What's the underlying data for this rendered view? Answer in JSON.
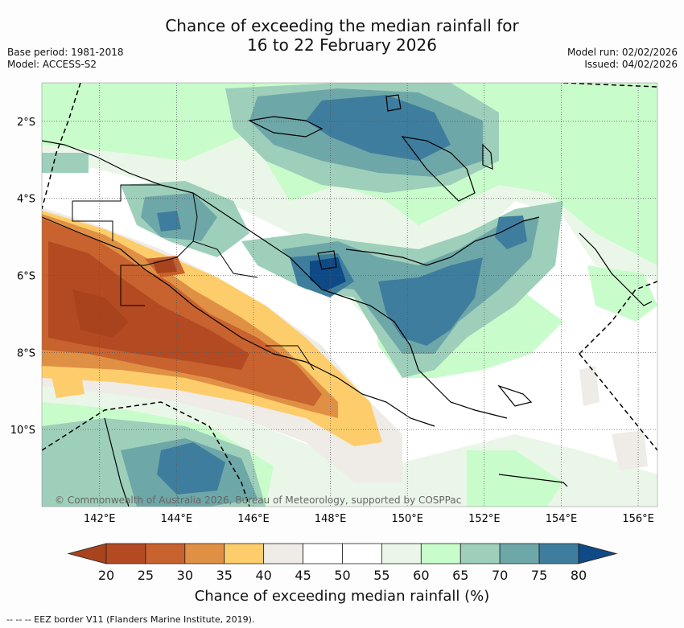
{
  "header": {
    "title_line1": "Chance of exceeding the median rainfall for",
    "title_line2": "16 to 22 February 2026",
    "base_period": "Base period: 1981-2018",
    "model": "Model: ACCESS-S2",
    "model_run": "Model run: 02/02/2026",
    "issued": "Issued: 04/02/2026"
  },
  "map": {
    "lon_range": [
      140.5,
      156.5
    ],
    "lat_range": [
      -12,
      -1
    ],
    "lon_ticks": [
      "142°E",
      "144°E",
      "146°E",
      "148°E",
      "150°E",
      "152°E",
      "154°E",
      "156°E"
    ],
    "lat_ticks": [
      "2°S",
      "4°S",
      "6°S",
      "8°S",
      "10°S"
    ],
    "copyright": "© Commonwealth of Australia 2026, Bureau of Meteorology, supported by COSPPac"
  },
  "colorbar": {
    "ticks": [
      "20",
      "25",
      "30",
      "35",
      "40",
      "45",
      "50",
      "55",
      "60",
      "65",
      "70",
      "75",
      "80"
    ],
    "colors": [
      "#a8431e",
      "#b34a22",
      "#c8622e",
      "#e09044",
      "#fdcd6b",
      "#efebe7",
      "#ffffff",
      "#ffffff",
      "#eaf6e8",
      "#c9fccb",
      "#9ecfbb",
      "#6ea7a8",
      "#3e7d9d",
      "#0f4a86"
    ],
    "label": "Chance of exceeding median rainfall (%)"
  },
  "footnote": "-- -- -- EEZ border V11 (Flanders Marine Institute, 2019)."
}
